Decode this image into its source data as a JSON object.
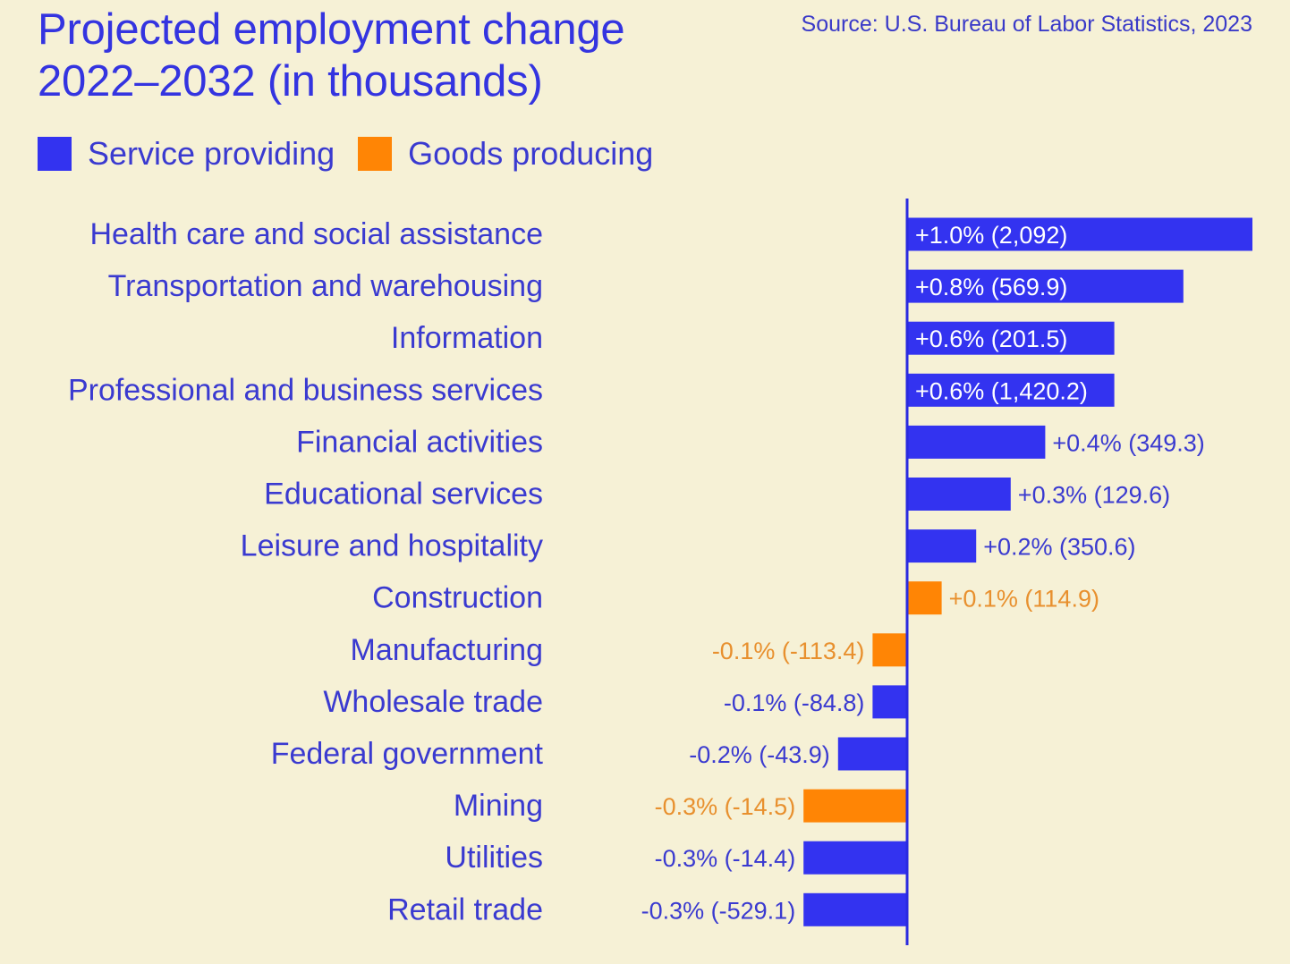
{
  "title": "Projected employment change\n2022–2032 (in thousands)",
  "source": "Source: U.S. Bureau of Labor Statistics, 2023",
  "colors": {
    "service": "#3333f0",
    "goods": "#ff8505",
    "background": "#f6f1d6",
    "text": "#3a3ad0",
    "goods_text": "#e8902e",
    "inside_label": "#ffffff"
  },
  "legend": [
    {
      "key": "service",
      "label": "Service providing"
    },
    {
      "key": "goods",
      "label": "Goods producing"
    }
  ],
  "chart_data": {
    "type": "bar",
    "orientation": "horizontal",
    "title": "Projected employment change 2022–2032 (in thousands)",
    "source": "Source: U.S. Bureau of Labor Statistics, 2023",
    "xlabel": "",
    "ylabel": "",
    "value_unit": "percent annual change",
    "xlim": [
      -0.3,
      1.0
    ],
    "grid": false,
    "legend_position": "top-left",
    "categories": [
      "Health care and social assistance",
      "Transportation and warehousing",
      "Information",
      "Professional and business services",
      "Financial activities",
      "Educational services",
      "Leisure and hospitality",
      "Construction",
      "Manufacturing",
      "Wholesale trade",
      "Federal government",
      "Mining",
      "Utilities",
      "Retail trade"
    ],
    "values": [
      1.0,
      0.8,
      0.6,
      0.6,
      0.4,
      0.3,
      0.2,
      0.1,
      -0.1,
      -0.1,
      -0.2,
      -0.3,
      -0.3,
      -0.3
    ],
    "thousands": [
      2092,
      569.9,
      201.5,
      1420.2,
      349.3,
      129.6,
      350.6,
      114.9,
      -113.4,
      -84.8,
      -43.9,
      -14.5,
      -14.4,
      -529.1
    ],
    "sector": [
      "service",
      "service",
      "service",
      "service",
      "service",
      "service",
      "service",
      "goods",
      "goods",
      "service",
      "service",
      "goods",
      "service",
      "service"
    ],
    "labels": [
      "+1.0% (2,092)",
      "+0.8% (569.9)",
      "+0.6% (201.5)",
      "+0.6% (1,420.2)",
      "+0.4% (349.3)",
      "+0.3% (129.6)",
      "+0.2% (350.6)",
      "+0.1% (114.9)",
      "-0.1% (-113.4)",
      "-0.1% (-84.8)",
      "-0.2% (-43.9)",
      "-0.3% (-14.5)",
      "-0.3% (-14.4)",
      "-0.3% (-529.1)"
    ]
  }
}
